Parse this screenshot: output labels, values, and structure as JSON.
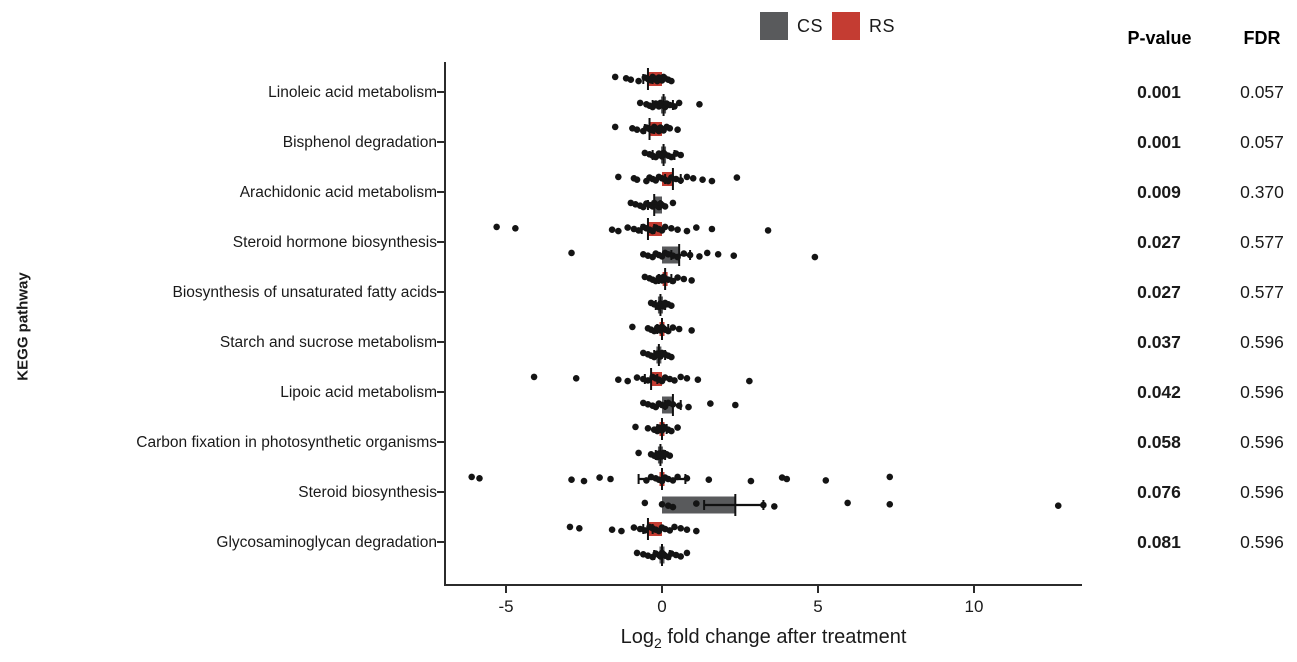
{
  "legend": {
    "items": [
      {
        "label": "CS",
        "color": "#595a5c"
      },
      {
        "label": "RS",
        "color": "#c43c32"
      }
    ]
  },
  "table": {
    "p_value_header": "P-value",
    "fdr_header": "FDR"
  },
  "xlabel": {
    "base": "Log",
    "subscript": "2",
    "rest": " fold change after treatment"
  },
  "chart_data": {
    "type": "scatter",
    "subtype": "strip-plot-with-mean-bars",
    "title": "",
    "xlabel": "Log2 fold change after treatment",
    "ylabel": "KEGG pathway",
    "xlim": [
      -7,
      13.5
    ],
    "x_ticks": [
      -5,
      0,
      5,
      10
    ],
    "grid": false,
    "legend_position": "top-center",
    "series_colors": {
      "CS": "#595a5c",
      "RS": "#c43c32"
    },
    "point_color": "#141414",
    "pathways": [
      {
        "name": "Linoleic acid metabolism",
        "p_value": "0.001",
        "fdr": "0.057",
        "rs": {
          "mean": -0.45,
          "err": [
            -0.6,
            -0.3
          ],
          "points": [
            -1.5,
            -1.15,
            -1.0,
            -0.75,
            -0.55,
            -0.45,
            -0.35,
            -0.3,
            -0.25,
            -0.2,
            -0.15,
            -0.1,
            -0.05,
            0,
            0.05,
            0.1,
            0.2,
            0.3
          ]
        },
        "cs": {
          "mean": 0.05,
          "err": [
            -0.3,
            0.35
          ],
          "points": [
            -0.7,
            -0.5,
            -0.4,
            -0.3,
            -0.2,
            -0.15,
            -0.1,
            -0.05,
            0,
            0.05,
            0.1,
            0.15,
            0.25,
            0.4,
            0.55,
            1.2
          ]
        }
      },
      {
        "name": "Bisphenol degradation",
        "p_value": "0.001",
        "fdr": "0.057",
        "rs": {
          "mean": -0.4,
          "err": [
            -0.55,
            -0.25
          ],
          "points": [
            -1.5,
            -0.95,
            -0.8,
            -0.6,
            -0.5,
            -0.4,
            -0.3,
            -0.25,
            -0.2,
            -0.15,
            -0.1,
            -0.05,
            0,
            0.05,
            0.15,
            0.25,
            0.5
          ]
        },
        "cs": {
          "mean": 0.05,
          "err": [
            -0.3,
            0.4
          ],
          "points": [
            -0.55,
            -0.4,
            -0.3,
            -0.2,
            -0.1,
            -0.05,
            0,
            0.05,
            0.1,
            0.2,
            0.3,
            0.45,
            0.6
          ]
        }
      },
      {
        "name": "Arachidonic acid metabolism",
        "p_value": "0.009",
        "fdr": "0.370",
        "rs": {
          "mean": 0.35,
          "err": [
            0.1,
            0.6
          ],
          "points": [
            -1.4,
            -0.9,
            -0.8,
            -0.5,
            -0.4,
            -0.3,
            -0.2,
            -0.1,
            0,
            0.1,
            0.2,
            0.3,
            0.45,
            0.6,
            0.8,
            1.0,
            1.3,
            1.6,
            2.4
          ]
        },
        "cs": {
          "mean": -0.25,
          "err": [
            -0.45,
            -0.05
          ],
          "points": [
            -1.0,
            -0.85,
            -0.7,
            -0.6,
            -0.5,
            -0.4,
            -0.3,
            -0.25,
            -0.2,
            -0.15,
            -0.1,
            -0.05,
            0,
            0.1,
            0.35
          ]
        }
      },
      {
        "name": "Steroid hormone biosynthesis",
        "p_value": "0.027",
        "fdr": "0.577",
        "rs": {
          "mean": -0.45,
          "err": [
            -0.65,
            -0.25
          ],
          "points": [
            -5.3,
            -4.7,
            -1.6,
            -1.4,
            -1.1,
            -0.9,
            -0.75,
            -0.6,
            -0.5,
            -0.4,
            -0.3,
            -0.2,
            -0.1,
            0,
            0.1,
            0.3,
            0.5,
            0.8,
            1.1,
            1.6,
            3.4
          ]
        },
        "cs": {
          "mean": 0.55,
          "err": [
            0.3,
            0.9
          ],
          "points": [
            -2.9,
            -0.6,
            -0.45,
            -0.3,
            -0.2,
            -0.1,
            0,
            0.1,
            0.2,
            0.35,
            0.5,
            0.7,
            0.9,
            1.2,
            1.45,
            1.8,
            2.3,
            4.9
          ]
        }
      },
      {
        "name": "Biosynthesis of unsaturated fatty acids",
        "p_value": "0.027",
        "fdr": "0.577",
        "rs": {
          "mean": 0.1,
          "err": [
            -0.1,
            0.3
          ],
          "points": [
            -0.55,
            -0.4,
            -0.3,
            -0.2,
            -0.1,
            -0.05,
            0,
            0.05,
            0.1,
            0.2,
            0.35,
            0.5,
            0.7,
            0.95
          ]
        },
        "cs": {
          "mean": -0.05,
          "err": [
            -0.2,
            0.1
          ],
          "points": [
            -0.35,
            -0.25,
            -0.15,
            -0.1,
            -0.05,
            0,
            0.05,
            0.1,
            0.2,
            0.3
          ]
        }
      },
      {
        "name": "Starch and sucrose metabolism",
        "p_value": "0.037",
        "fdr": "0.596",
        "rs": {
          "mean": 0.0,
          "err": [
            -0.15,
            0.2
          ],
          "points": [
            -0.95,
            -0.45,
            -0.35,
            -0.25,
            -0.15,
            -0.1,
            -0.05,
            0,
            0.05,
            0.1,
            0.2,
            0.35,
            0.55,
            0.95
          ]
        },
        "cs": {
          "mean": -0.1,
          "err": [
            -0.25,
            0.1
          ],
          "points": [
            -0.6,
            -0.45,
            -0.35,
            -0.25,
            -0.15,
            -0.1,
            -0.05,
            0,
            0.1,
            0.2,
            0.3
          ]
        }
      },
      {
        "name": "Lipoic acid metabolism",
        "p_value": "0.042",
        "fdr": "0.596",
        "rs": {
          "mean": -0.35,
          "err": [
            -0.55,
            -0.15
          ],
          "points": [
            -4.1,
            -2.75,
            -1.4,
            -1.1,
            -0.8,
            -0.6,
            -0.45,
            -0.3,
            -0.2,
            -0.1,
            0,
            0.1,
            0.25,
            0.4,
            0.6,
            0.8,
            1.15,
            2.8
          ]
        },
        "cs": {
          "mean": 0.35,
          "err": [
            0.1,
            0.6
          ],
          "points": [
            -0.6,
            -0.45,
            -0.3,
            -0.2,
            -0.1,
            0,
            0.1,
            0.2,
            0.35,
            0.55,
            0.85,
            1.55,
            2.35
          ]
        }
      },
      {
        "name": "Carbon fixation in photosynthetic organisms",
        "p_value": "0.058",
        "fdr": "0.596",
        "rs": {
          "mean": 0.0,
          "err": [
            -0.15,
            0.15
          ],
          "points": [
            -0.85,
            -0.45,
            -0.25,
            -0.15,
            -0.1,
            -0.05,
            0,
            0.05,
            0.1,
            0.2,
            0.3,
            0.5
          ]
        },
        "cs": {
          "mean": -0.05,
          "err": [
            -0.2,
            0.1
          ],
          "points": [
            -0.75,
            -0.35,
            -0.25,
            -0.15,
            -0.1,
            -0.05,
            0,
            0.05,
            0.15,
            0.25
          ]
        }
      },
      {
        "name": "Steroid biosynthesis",
        "p_value": "0.076",
        "fdr": "0.596",
        "rs": {
          "mean": 0.0,
          "err": [
            -0.75,
            0.75
          ],
          "points": [
            -6.1,
            -5.85,
            -2.9,
            -2.5,
            -2.0,
            -1.65,
            -0.5,
            -0.35,
            -0.2,
            -0.1,
            0,
            0.1,
            0.2,
            0.35,
            0.5,
            0.8,
            1.5,
            2.85,
            3.85,
            4.0,
            5.25,
            7.3
          ]
        },
        "cs": {
          "mean": 2.35,
          "err": [
            1.35,
            3.25
          ],
          "points": [
            -0.55,
            0,
            0.2,
            0.35,
            1.1,
            3.25,
            3.6,
            5.95,
            7.3,
            12.7
          ]
        }
      },
      {
        "name": "Glycosaminoglycan degradation",
        "p_value": "0.081",
        "fdr": "0.596",
        "rs": {
          "mean": -0.45,
          "err": [
            -0.6,
            -0.3
          ],
          "points": [
            -2.95,
            -2.65,
            -1.6,
            -1.3,
            -0.9,
            -0.7,
            -0.55,
            -0.4,
            -0.3,
            -0.2,
            -0.1,
            0,
            0.1,
            0.25,
            0.4,
            0.6,
            0.8,
            1.1
          ]
        },
        "cs": {
          "mean": 0.0,
          "err": [
            -0.25,
            0.25
          ],
          "points": [
            -0.8,
            -0.6,
            -0.45,
            -0.3,
            -0.2,
            -0.1,
            -0.05,
            0,
            0.05,
            0.1,
            0.2,
            0.3,
            0.45,
            0.6,
            0.8
          ]
        }
      }
    ]
  }
}
